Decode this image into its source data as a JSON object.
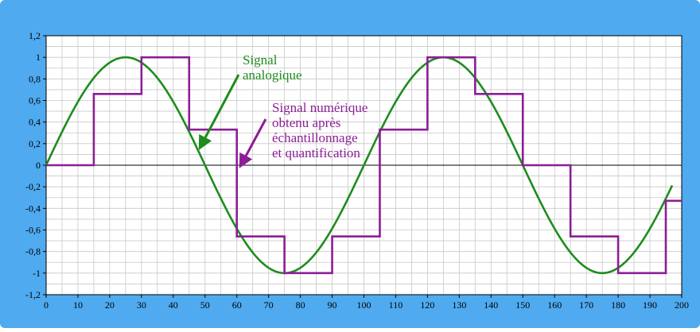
{
  "chart_data": {
    "type": "line",
    "title": "",
    "xlabel": "",
    "ylabel": "",
    "xlim": [
      0,
      200
    ],
    "ylim": [
      -1.2,
      1.2
    ],
    "grid": true,
    "legend": "none",
    "xticks": [
      0,
      10,
      20,
      30,
      40,
      50,
      60,
      70,
      80,
      90,
      100,
      110,
      120,
      130,
      140,
      150,
      160,
      170,
      180,
      190,
      200
    ],
    "yticks": [
      1.2,
      1,
      0.8,
      0.6,
      0.4,
      0.2,
      0,
      -0.2,
      -0.4,
      -0.6,
      -0.8,
      -1,
      -1.2
    ],
    "ytick_labels": [
      "1,2",
      "1",
      "0,8",
      "0,6",
      "0,4",
      "0,2",
      "0",
      "-0,2",
      "-0,4",
      "-0,6",
      "-0,8",
      "-1",
      "-1,2"
    ],
    "series": [
      {
        "name": "Signal analogique",
        "color": "#1e8c1e",
        "function": "sine",
        "amplitude": 1,
        "period": 100,
        "x_range": [
          0,
          197
        ],
        "x": [
          0,
          12.5,
          25,
          37.5,
          50,
          62.5,
          75,
          87.5,
          100,
          112.5,
          125,
          137.5,
          150,
          162.5,
          175,
          187.5,
          197
        ],
        "values": [
          0,
          0.707,
          1,
          0.707,
          0,
          -0.707,
          -1,
          -0.707,
          0,
          0.707,
          1,
          0.707,
          0,
          -0.707,
          -1,
          -0.707,
          -0.19
        ]
      },
      {
        "name": "Signal numérique obtenu après échantillonnage et quantification",
        "color": "#8c1e96",
        "style": "step",
        "x": [
          0,
          15,
          30,
          45,
          60,
          75,
          90,
          105,
          120,
          135,
          150,
          165,
          180,
          195,
          200
        ],
        "values": [
          0,
          0.66,
          1,
          0.33,
          -0.66,
          -1,
          -0.66,
          0.33,
          1,
          0.66,
          0,
          -0.66,
          -1,
          -0.33,
          -0.33
        ]
      }
    ],
    "annotations": [
      {
        "lines": [
          "Signal",
          "analogique"
        ],
        "color": "#1e8c1e"
      },
      {
        "lines": [
          "Signal numérique",
          "obtenu après",
          "échantillonnage",
          "et quantification"
        ],
        "color": "#8c1e96"
      }
    ]
  }
}
